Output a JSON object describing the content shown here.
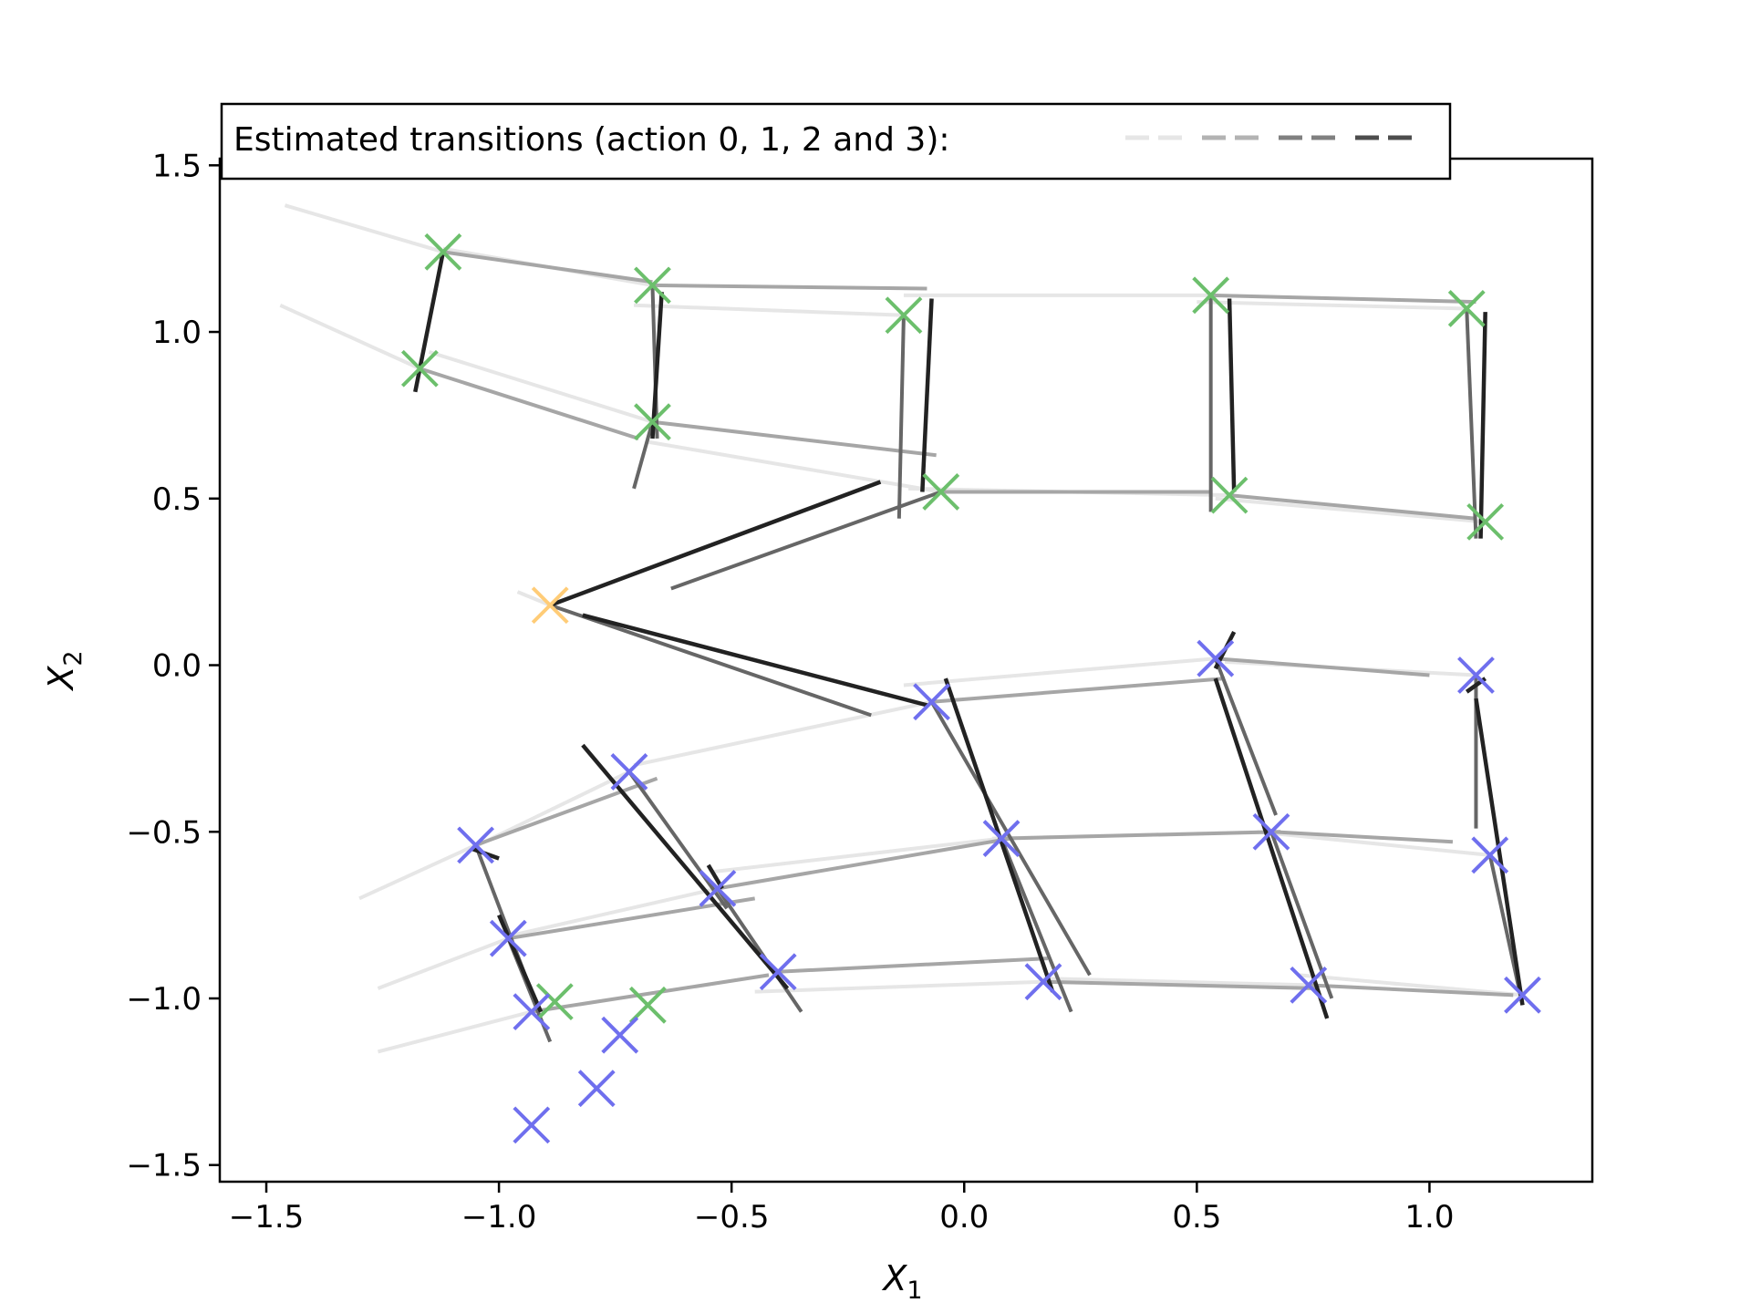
{
  "chart_data": {
    "type": "scatter",
    "title": "",
    "xlabel": "X",
    "xlabel_sub": "1",
    "ylabel": "X",
    "ylabel_sub": "2",
    "xlim": [
      -1.6,
      1.35
    ],
    "ylim": [
      -1.55,
      1.52
    ],
    "xticks": [
      {
        "value": -1.5,
        "label": "−1.5"
      },
      {
        "value": -1.0,
        "label": "−1.0"
      },
      {
        "value": -0.5,
        "label": "−0.5"
      },
      {
        "value": 0.0,
        "label": "0.0"
      },
      {
        "value": 0.5,
        "label": "0.5"
      },
      {
        "value": 1.0,
        "label": "1.0"
      }
    ],
    "yticks": [
      {
        "value": 1.5,
        "label": "1.5"
      },
      {
        "value": 1.0,
        "label": "1.0"
      },
      {
        "value": 0.5,
        "label": "0.5"
      },
      {
        "value": 0.0,
        "label": "0.0"
      },
      {
        "value": -0.5,
        "label": "−0.5"
      },
      {
        "value": -1.0,
        "label": "−1.0"
      },
      {
        "value": -1.5,
        "label": "−1.5"
      }
    ],
    "grid": false,
    "legend": {
      "placement": "top-left",
      "text": "Estimated transitions (action 0, 1, 2 and 3):",
      "entries": [
        {
          "action": 0,
          "color": "#e6e6e6"
        },
        {
          "action": 1,
          "color": "#b3b3b3"
        },
        {
          "action": 2,
          "color": "#808080"
        },
        {
          "action": 3,
          "color": "#4d4d4d"
        }
      ]
    },
    "colors": {
      "green_marker": "#6cbf6c",
      "blue_marker": "#6f6fee",
      "orange_marker": "#ffcc77",
      "action0": "#e6e6e6",
      "action1": "#a6a6a6",
      "action2": "#666666",
      "action3": "#222222"
    },
    "markers": {
      "green": [
        [
          -1.12,
          1.24
        ],
        [
          -1.17,
          0.89
        ],
        [
          -0.67,
          1.14
        ],
        [
          -0.67,
          0.73
        ],
        [
          -0.13,
          1.05
        ],
        [
          -0.05,
          0.52
        ],
        [
          0.53,
          1.11
        ],
        [
          0.57,
          0.51
        ],
        [
          1.08,
          1.07
        ],
        [
          1.12,
          0.43
        ],
        [
          -0.88,
          -1.01
        ],
        [
          -0.68,
          -1.02
        ]
      ],
      "blue": [
        [
          0.54,
          0.02
        ],
        [
          1.1,
          -0.03
        ],
        [
          -0.07,
          -0.11
        ],
        [
          -0.72,
          -0.32
        ],
        [
          -1.05,
          -0.54
        ],
        [
          -0.53,
          -0.67
        ],
        [
          0.08,
          -0.52
        ],
        [
          0.66,
          -0.5
        ],
        [
          1.13,
          -0.57
        ],
        [
          -0.98,
          -0.82
        ],
        [
          -0.93,
          -1.04
        ],
        [
          -0.4,
          -0.92
        ],
        [
          0.17,
          -0.95
        ],
        [
          0.74,
          -0.96
        ],
        [
          1.2,
          -0.99
        ],
        [
          -0.74,
          -1.11
        ],
        [
          -0.79,
          -1.27
        ],
        [
          -0.93,
          -1.38
        ]
      ],
      "orange": [
        [
          -0.89,
          0.18
        ]
      ]
    },
    "transitions": [
      {
        "action": 0,
        "from": [
          -1.12,
          1.24
        ],
        "to": [
          -1.46,
          1.38
        ]
      },
      {
        "action": 0,
        "from": [
          -1.17,
          0.89
        ],
        "to": [
          -1.47,
          1.08
        ]
      },
      {
        "action": 0,
        "from": [
          -0.67,
          1.14
        ],
        "to": [
          -1.12,
          1.25
        ]
      },
      {
        "action": 0,
        "from": [
          -0.67,
          0.73
        ],
        "to": [
          -1.15,
          0.94
        ]
      },
      {
        "action": 0,
        "from": [
          -0.13,
          1.05
        ],
        "to": [
          -0.71,
          1.08
        ]
      },
      {
        "action": 0,
        "from": [
          -0.05,
          0.52
        ],
        "to": [
          -0.68,
          0.67
        ]
      },
      {
        "action": 0,
        "from": [
          0.53,
          1.11
        ],
        "to": [
          -0.13,
          1.11
        ]
      },
      {
        "action": 0,
        "from": [
          0.57,
          0.51
        ],
        "to": [
          -0.12,
          0.53
        ]
      },
      {
        "action": 0,
        "from": [
          1.08,
          1.07
        ],
        "to": [
          0.5,
          1.09
        ]
      },
      {
        "action": 0,
        "from": [
          1.12,
          0.43
        ],
        "to": [
          0.54,
          0.5
        ]
      },
      {
        "action": 0,
        "from": [
          -0.89,
          0.18
        ],
        "to": [
          -0.96,
          0.22
        ]
      },
      {
        "action": 0,
        "from": [
          -0.07,
          -0.11
        ],
        "to": [
          -0.71,
          -0.3
        ]
      },
      {
        "action": 0,
        "from": [
          0.54,
          0.02
        ],
        "to": [
          -0.13,
          -0.06
        ]
      },
      {
        "action": 0,
        "from": [
          -0.72,
          -0.32
        ],
        "to": [
          -1.06,
          -0.55
        ]
      },
      {
        "action": 0,
        "from": [
          -1.05,
          -0.54
        ],
        "to": [
          -1.3,
          -0.7
        ]
      },
      {
        "action": 0,
        "from": [
          0.08,
          -0.52
        ],
        "to": [
          -0.54,
          -0.62
        ]
      },
      {
        "action": 0,
        "from": [
          0.66,
          -0.5
        ],
        "to": [
          0.06,
          -0.52
        ]
      },
      {
        "action": 0,
        "from": [
          1.13,
          -0.57
        ],
        "to": [
          0.63,
          -0.5
        ]
      },
      {
        "action": 0,
        "from": [
          -0.53,
          -0.67
        ],
        "to": [
          -0.97,
          -0.81
        ]
      },
      {
        "action": 0,
        "from": [
          -0.98,
          -0.82
        ],
        "to": [
          -1.26,
          -0.97
        ]
      },
      {
        "action": 0,
        "from": [
          0.17,
          -0.95
        ],
        "to": [
          -0.45,
          -0.98
        ]
      },
      {
        "action": 0,
        "from": [
          0.74,
          -0.96
        ],
        "to": [
          0.17,
          -0.94
        ]
      },
      {
        "action": 0,
        "from": [
          1.2,
          -0.99
        ],
        "to": [
          0.72,
          -0.93
        ]
      },
      {
        "action": 0,
        "from": [
          -0.93,
          -1.04
        ],
        "to": [
          -1.26,
          -1.16
        ]
      },
      {
        "action": 0,
        "from": [
          1.1,
          -0.03
        ],
        "to": [
          0.56,
          0.01
        ]
      },
      {
        "action": 1,
        "from": [
          -1.12,
          1.24
        ],
        "to": [
          -0.67,
          1.15
        ]
      },
      {
        "action": 1,
        "from": [
          -0.67,
          1.14
        ],
        "to": [
          -0.08,
          1.13
        ]
      },
      {
        "action": 1,
        "from": [
          -1.17,
          0.89
        ],
        "to": [
          -0.7,
          0.68
        ]
      },
      {
        "action": 1,
        "from": [
          -0.67,
          0.73
        ],
        "to": [
          -0.06,
          0.63
        ]
      },
      {
        "action": 1,
        "from": [
          0.53,
          1.11
        ],
        "to": [
          1.1,
          1.09
        ]
      },
      {
        "action": 1,
        "from": [
          -0.05,
          0.52
        ],
        "to": [
          0.53,
          0.52
        ]
      },
      {
        "action": 1,
        "from": [
          0.57,
          0.51
        ],
        "to": [
          1.1,
          0.44
        ]
      },
      {
        "action": 1,
        "from": [
          -0.07,
          -0.11
        ],
        "to": [
          0.56,
          -0.04
        ]
      },
      {
        "action": 1,
        "from": [
          0.54,
          0.02
        ],
        "to": [
          1.0,
          -0.03
        ]
      },
      {
        "action": 1,
        "from": [
          -1.05,
          -0.54
        ],
        "to": [
          -0.66,
          -0.34
        ]
      },
      {
        "action": 1,
        "from": [
          -0.98,
          -0.82
        ],
        "to": [
          -0.45,
          -0.7
        ]
      },
      {
        "action": 1,
        "from": [
          -0.53,
          -0.67
        ],
        "to": [
          0.1,
          -0.52
        ]
      },
      {
        "action": 1,
        "from": [
          0.08,
          -0.52
        ],
        "to": [
          0.68,
          -0.5
        ]
      },
      {
        "action": 1,
        "from": [
          0.66,
          -0.5
        ],
        "to": [
          1.05,
          -0.53
        ]
      },
      {
        "action": 1,
        "from": [
          -0.93,
          -1.04
        ],
        "to": [
          -0.42,
          -0.93
        ]
      },
      {
        "action": 1,
        "from": [
          -0.4,
          -0.92
        ],
        "to": [
          0.18,
          -0.88
        ]
      },
      {
        "action": 1,
        "from": [
          0.17,
          -0.95
        ],
        "to": [
          0.76,
          -0.97
        ]
      },
      {
        "action": 1,
        "from": [
          0.74,
          -0.96
        ],
        "to": [
          1.18,
          -0.99
        ]
      },
      {
        "action": 2,
        "from": [
          -0.05,
          0.52
        ],
        "to": [
          -0.63,
          0.23
        ]
      },
      {
        "action": 2,
        "from": [
          -0.89,
          0.18
        ],
        "to": [
          -0.2,
          -0.15
        ]
      },
      {
        "action": 2,
        "from": [
          -0.67,
          1.14
        ],
        "to": [
          -0.66,
          0.68
        ]
      },
      {
        "action": 2,
        "from": [
          -0.67,
          0.73
        ],
        "to": [
          -0.71,
          0.53
        ]
      },
      {
        "action": 2,
        "from": [
          -0.13,
          1.05
        ],
        "to": [
          -0.14,
          0.44
        ]
      },
      {
        "action": 2,
        "from": [
          0.53,
          1.11
        ],
        "to": [
          0.53,
          0.46
        ]
      },
      {
        "action": 2,
        "from": [
          1.08,
          1.07
        ],
        "to": [
          1.1,
          0.38
        ]
      },
      {
        "action": 2,
        "from": [
          0.54,
          0.02
        ],
        "to": [
          0.67,
          -0.45
        ]
      },
      {
        "action": 2,
        "from": [
          1.1,
          -0.03
        ],
        "to": [
          1.1,
          -0.49
        ]
      },
      {
        "action": 2,
        "from": [
          -0.07,
          -0.11
        ],
        "to": [
          0.27,
          -0.93
        ]
      },
      {
        "action": 2,
        "from": [
          -0.72,
          -0.32
        ],
        "to": [
          -0.51,
          -0.73
        ]
      },
      {
        "action": 2,
        "from": [
          0.66,
          -0.5
        ],
        "to": [
          0.79,
          -1.0
        ]
      },
      {
        "action": 2,
        "from": [
          1.13,
          -0.57
        ],
        "to": [
          1.2,
          -1.02
        ]
      },
      {
        "action": 2,
        "from": [
          -0.53,
          -0.67
        ],
        "to": [
          -0.35,
          -1.04
        ]
      },
      {
        "action": 2,
        "from": [
          0.08,
          -0.52
        ],
        "to": [
          0.23,
          -1.04
        ]
      },
      {
        "action": 2,
        "from": [
          -1.05,
          -0.54
        ],
        "to": [
          -0.93,
          -0.98
        ]
      },
      {
        "action": 2,
        "from": [
          -0.98,
          -0.82
        ],
        "to": [
          -0.89,
          -1.13
        ]
      },
      {
        "action": 3,
        "from": [
          -0.89,
          0.18
        ],
        "to": [
          -0.18,
          0.55
        ]
      },
      {
        "action": 3,
        "from": [
          -0.82,
          0.15
        ],
        "to": [
          -0.08,
          -0.12
        ]
      },
      {
        "action": 3,
        "from": [
          -1.12,
          1.24
        ],
        "to": [
          -1.18,
          0.82
        ]
      },
      {
        "action": 3,
        "from": [
          -0.65,
          1.12
        ],
        "to": [
          -0.67,
          0.68
        ]
      },
      {
        "action": 3,
        "from": [
          -0.07,
          1.1
        ],
        "to": [
          -0.09,
          0.52
        ]
      },
      {
        "action": 3,
        "from": [
          0.57,
          1.1
        ],
        "to": [
          0.58,
          0.52
        ]
      },
      {
        "action": 3,
        "from": [
          1.12,
          1.06
        ],
        "to": [
          1.11,
          0.38
        ]
      },
      {
        "action": 3,
        "from": [
          0.58,
          0.1
        ],
        "to": [
          0.54,
          -0.01
        ]
      },
      {
        "action": 3,
        "from": [
          1.12,
          -0.04
        ],
        "to": [
          1.08,
          -0.08
        ]
      },
      {
        "action": 3,
        "from": [
          1.1,
          -0.1
        ],
        "to": [
          1.2,
          -1.02
        ]
      },
      {
        "action": 3,
        "from": [
          -0.04,
          -0.04
        ],
        "to": [
          0.19,
          -0.98
        ]
      },
      {
        "action": 3,
        "from": [
          0.54,
          -0.04
        ],
        "to": [
          0.78,
          -1.06
        ]
      },
      {
        "action": 3,
        "from": [
          -0.82,
          -0.24
        ],
        "to": [
          -0.38,
          -0.97
        ]
      },
      {
        "action": 3,
        "from": [
          -1.06,
          -0.55
        ],
        "to": [
          -1.0,
          -0.58
        ]
      },
      {
        "action": 3,
        "from": [
          -1.0,
          -0.75
        ],
        "to": [
          -0.91,
          -1.04
        ]
      },
      {
        "action": 3,
        "from": [
          -0.55,
          -0.6
        ],
        "to": [
          -0.52,
          -0.67
        ]
      }
    ]
  }
}
